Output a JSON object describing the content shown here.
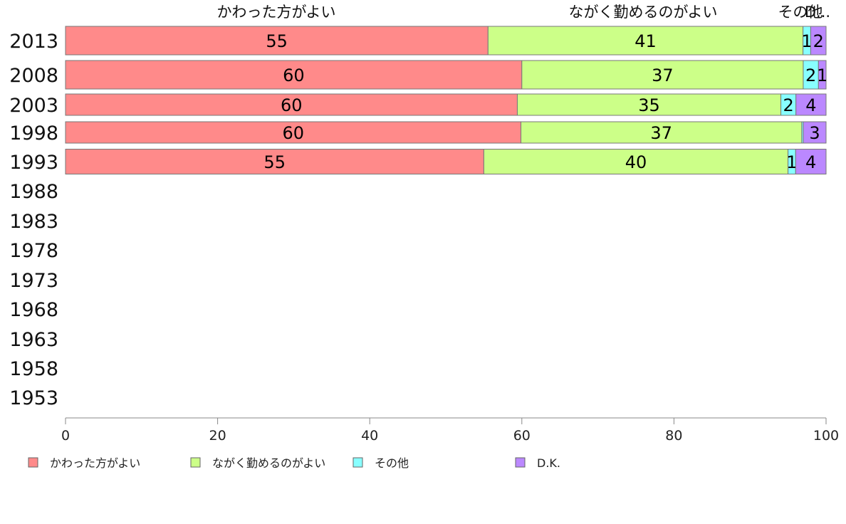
{
  "chart_data": {
    "type": "bar",
    "orientation": "horizontal",
    "stacked": true,
    "categories": [
      "2013",
      "2008",
      "2003",
      "1998",
      "1993",
      "1988",
      "1983",
      "1978",
      "1973",
      "1968",
      "1963",
      "1958",
      "1953"
    ],
    "series": [
      {
        "name": "かわった方がよい",
        "color": "#ff8a8a",
        "values": [
          55,
          60,
          60,
          60,
          55,
          null,
          null,
          null,
          null,
          null,
          null,
          null,
          null
        ]
      },
      {
        "name": "ながく勤めるのがよい",
        "color": "#ccff88",
        "values": [
          41,
          37,
          35,
          37,
          40,
          null,
          null,
          null,
          null,
          null,
          null,
          null,
          null
        ]
      },
      {
        "name": "その他",
        "color": "#88ffff",
        "values": [
          1,
          2,
          2,
          0.2,
          1,
          null,
          null,
          null,
          null,
          null,
          null,
          null,
          null
        ]
      },
      {
        "name": "D.K.",
        "color": "#bb88ff",
        "values": [
          2,
          1,
          4,
          3,
          4,
          null,
          null,
          null,
          null,
          null,
          null,
          null,
          null
        ]
      }
    ],
    "segment_labels": [
      [
        "55",
        "41",
        "1",
        "2"
      ],
      [
        "60",
        "37",
        "2",
        "1"
      ],
      [
        "60",
        "35",
        "2",
        "4"
      ],
      [
        "60",
        "37",
        "",
        "3"
      ],
      [
        "55",
        "40",
        "1",
        "4"
      ]
    ],
    "top_labels": [
      "かわった方がよい",
      "ながく勤めるのがよい",
      "その他",
      "D..."
    ],
    "xlim": [
      0,
      100
    ],
    "xticks": [
      0,
      20,
      40,
      60,
      80,
      100
    ],
    "grid": false,
    "legend_position": "bottom"
  }
}
